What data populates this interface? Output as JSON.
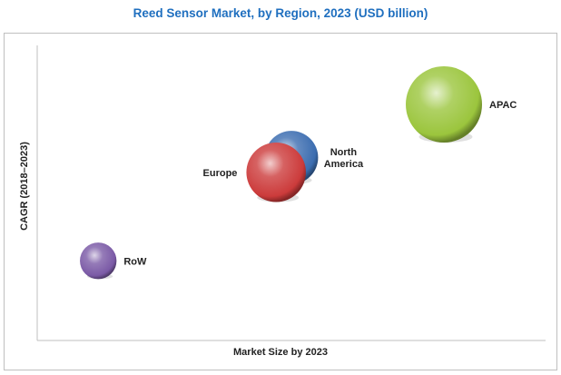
{
  "chart_data": {
    "type": "bubble",
    "title": "Reed Sensor Market, by Region, 2023 (USD billion)",
    "xlabel": "Market Size by 2023",
    "ylabel": "CAGR (2018–2023)",
    "xlim": [
      0,
      100
    ],
    "ylim": [
      0,
      100
    ],
    "grid": false,
    "series": [
      {
        "name": "APAC",
        "x": 80.0,
        "y": 80.0,
        "size": 1.0,
        "color": "#9bc53d",
        "label_lines": [
          "APAC"
        ]
      },
      {
        "name": "North America",
        "x": 50.0,
        "y": 62.0,
        "size": 0.7,
        "color": "#3c6db0",
        "label_lines": [
          "North",
          "America"
        ]
      },
      {
        "name": "Europe",
        "x": 47.0,
        "y": 57.0,
        "size": 0.78,
        "color": "#cc3b3b",
        "label_lines": [
          "Europe"
        ]
      },
      {
        "name": "RoW",
        "x": 12.0,
        "y": 27.0,
        "size": 0.48,
        "color": "#7b5aa6",
        "label_lines": [
          "RoW"
        ]
      }
    ]
  }
}
